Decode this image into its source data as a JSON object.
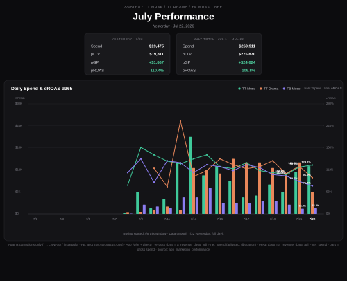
{
  "header": {
    "eyebrow": "AGATHA · TT MUSE / TT DRAMA / FB MUSE · APP",
    "title": "July Performance",
    "subtitle": "Yesterday · Jul 22, 2026"
  },
  "cards": [
    {
      "title": "YESTERDAY · 7/22",
      "rows": [
        {
          "label": "Spend",
          "value": "$19,475",
          "color": "#ffffff"
        },
        {
          "label": "pLTV",
          "value": "$19,811",
          "color": "#ffffff"
        },
        {
          "label": "pGP",
          "value": "+$1,867",
          "color": "#4fd1a0"
        },
        {
          "label": "pROAS",
          "value": "110.4%",
          "color": "#4fd1a0"
        }
      ]
    },
    {
      "title": "JULY TOTAL · JUL 1 — JUL 22",
      "rows": [
        {
          "label": "Spend",
          "value": "$269,911",
          "color": "#ffffff"
        },
        {
          "label": "pLTV",
          "value": "$275,870",
          "color": "#ffffff"
        },
        {
          "label": "pGP",
          "value": "+$24,624",
          "color": "#4fd1a0"
        },
        {
          "label": "pROAS",
          "value": "109.8%",
          "color": "#4fd1a0"
        }
      ]
    }
  ],
  "chart_data": {
    "type": "bar",
    "title": "Daily Spend & eROAS d365",
    "legend_note": "bars: Spend · line: eROAS",
    "ylabel": "SPEND",
    "y2label": "eROAS",
    "categories": [
      "7/1",
      null,
      "7/3",
      null,
      "7/5",
      null,
      "7/7",
      null,
      "7/9",
      null,
      "7/11",
      null,
      "7/13",
      null,
      "7/15",
      null,
      "7/17",
      null,
      "7/19",
      null,
      "7/21",
      "7/22"
    ],
    "series": [
      {
        "name": "TT Muse",
        "color": "#3fc99a",
        "values": [
          0,
          0,
          0,
          0,
          0,
          0,
          0,
          200,
          6000,
          1500,
          4000,
          14000,
          21000,
          10500,
          13000,
          9000,
          4500,
          5000,
          8000,
          6000,
          11500,
          13000
        ],
        "value_labels": [
          null,
          null,
          null,
          null,
          null,
          null,
          null,
          null,
          null,
          null,
          null,
          null,
          null,
          null,
          null,
          null,
          null,
          null,
          null,
          null,
          null,
          null
        ],
        "eroas": [
          null,
          null,
          null,
          null,
          null,
          null,
          null,
          73,
          169,
          150,
          134,
          127,
          140,
          150,
          120,
          115,
          130,
          110,
          105,
          100.1,
          118.8,
          124.1
        ],
        "eroas_labels": [
          null,
          null,
          null,
          null,
          null,
          null,
          null,
          null,
          null,
          null,
          null,
          null,
          null,
          null,
          null,
          null,
          null,
          null,
          null,
          "100.1%",
          "118.8%",
          "124.1%"
        ]
      },
      {
        "name": "TT Drama",
        "color": "#e8875a",
        "values": [
          0,
          0,
          0,
          0,
          0,
          0,
          0,
          300,
          500,
          1000,
          2000,
          1000,
          12500,
          12000,
          11000,
          15000,
          14000,
          14000,
          12500,
          10500,
          14000,
          6000
        ],
        "value_labels": [
          null,
          null,
          null,
          null,
          null,
          null,
          null,
          null,
          null,
          null,
          null,
          null,
          null,
          null,
          null,
          null,
          null,
          null,
          null,
          "$10.5K",
          null,
          null
        ],
        "eroas": [
          null,
          null,
          null,
          null,
          null,
          null,
          null,
          null,
          null,
          116,
          69,
          236,
          95,
          110,
          140,
          125,
          115,
          120,
          135,
          102.1,
          121.4,
          91.9
        ],
        "eroas_labels": [
          null,
          null,
          null,
          null,
          null,
          null,
          null,
          null,
          null,
          null,
          null,
          null,
          null,
          null,
          null,
          null,
          null,
          null,
          null,
          "102.1%",
          "121.4%",
          "91.9%"
        ]
      },
      {
        "name": "FB Muse",
        "color": "#8b7cf0",
        "values": [
          0,
          0,
          0,
          0,
          0,
          0,
          0,
          100,
          2500,
          2000,
          1500,
          4500,
          4500,
          7000,
          3000,
          3000,
          3000,
          3500,
          3500,
          2500,
          1400,
          1500
        ],
        "value_labels": [
          null,
          null,
          null,
          null,
          null,
          null,
          null,
          null,
          null,
          null,
          null,
          null,
          null,
          null,
          null,
          null,
          null,
          null,
          null,
          null,
          "$1.4K",
          "$1.5K"
        ],
        "eroas": [
          null,
          null,
          null,
          null,
          null,
          null,
          null,
          105,
          140,
          80,
          135,
          130,
          105,
          125,
          120,
          110,
          125,
          118,
          100,
          96.6,
          82.7,
          71.1
        ],
        "eroas_labels": [
          null,
          null,
          null,
          null,
          null,
          null,
          null,
          null,
          null,
          null,
          null,
          null,
          null,
          null,
          null,
          null,
          null,
          null,
          null,
          "96.6%",
          "82.7%",
          "71.1%"
        ]
      }
    ],
    "ylim": [
      0,
      30000
    ],
    "yticks": [
      {
        "value": 0,
        "label": "$0"
      },
      {
        "value": 6000,
        "label": "$6K"
      },
      {
        "value": 12000,
        "label": "$12K"
      },
      {
        "value": 18000,
        "label": "$18K"
      },
      {
        "value": 24000,
        "label": "$24K"
      },
      {
        "value": 30000,
        "label": "$30K"
      }
    ],
    "y2lim": [
      0,
      280
    ],
    "y2ticks": [
      {
        "value": 0,
        "label": "0%"
      },
      {
        "value": 56,
        "label": "56%"
      },
      {
        "value": 112,
        "label": "112%"
      },
      {
        "value": 168,
        "label": "168%"
      },
      {
        "value": 224,
        "label": "224%"
      },
      {
        "value": 280,
        "label": "280%"
      }
    ],
    "grid": true,
    "note": "Buying started 7/8 this window · Data through 7/22 (yesterday, full day)."
  },
  "footer": "Agatha campaigns only (TT: LNNI-AA / instagatha · FB: acct 2087491964447036) · App (w/ie + direct) · eROAS d365 = a_revenue_d365_adj ÷ net_spend (adjusted, dbt canon) · ePAB d365 = a_revenue_d365_adj − net_spend · bars = gross spend · source: app_marketing_performance"
}
